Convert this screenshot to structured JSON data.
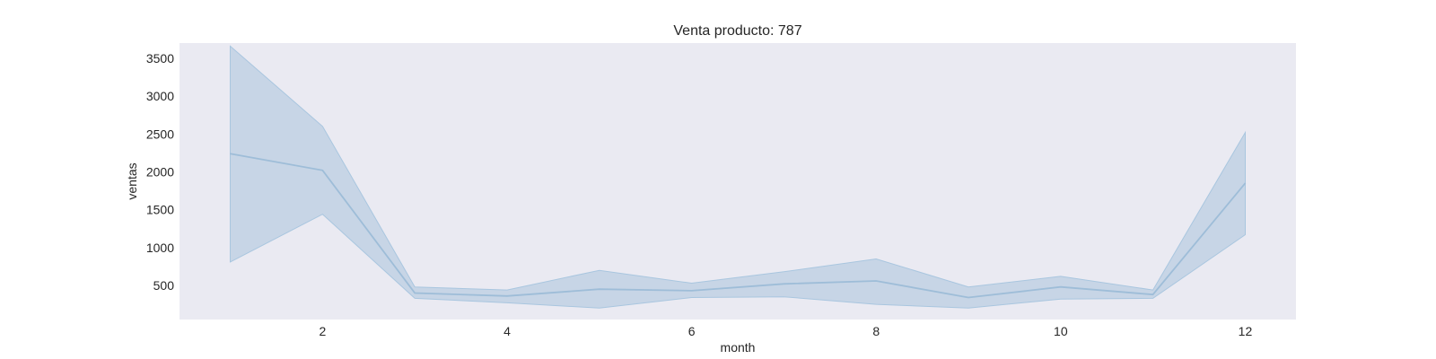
{
  "chart_data": {
    "type": "line",
    "title": "Venta producto: 787",
    "xlabel": "month",
    "ylabel": "ventas",
    "xlim": [
      0.45,
      12.55
    ],
    "ylim": [
      50,
      3700
    ],
    "xticks": [
      2,
      4,
      6,
      8,
      10,
      12
    ],
    "yticks": [
      500,
      1000,
      1500,
      2000,
      2500,
      3000,
      3500
    ],
    "grid": false,
    "legend": "none",
    "colors": {
      "line": "#9ebdd8",
      "band_fill": "#9ebdd8",
      "band_edge": "#a9c6df",
      "plot_background": "#eaeaf2"
    },
    "series": [
      {
        "x": [
          1,
          2,
          3,
          4,
          5,
          6,
          7,
          8,
          9,
          10,
          11,
          12
        ],
        "values": [
          2240,
          2020,
          400,
          360,
          450,
          430,
          520,
          560,
          340,
          480,
          380,
          1850
        ],
        "ci_lower": [
          810,
          1440,
          330,
          270,
          200,
          340,
          350,
          250,
          200,
          320,
          330,
          1170
        ],
        "ci_upper": [
          3660,
          2600,
          480,
          440,
          700,
          530,
          680,
          850,
          480,
          620,
          440,
          2520
        ]
      }
    ]
  }
}
